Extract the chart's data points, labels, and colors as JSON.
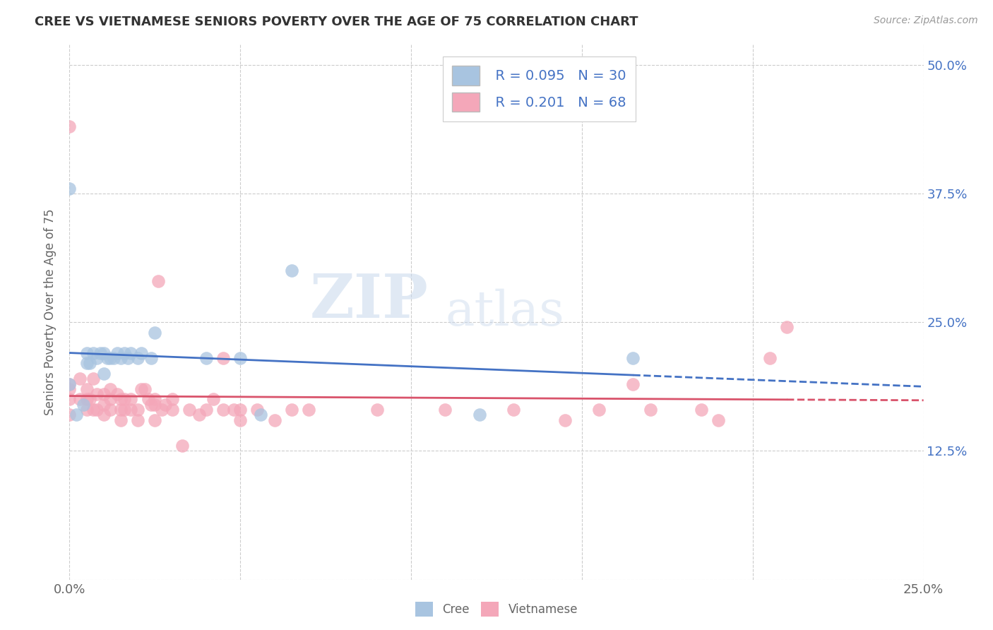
{
  "title": "CREE VS VIETNAMESE SENIORS POVERTY OVER THE AGE OF 75 CORRELATION CHART",
  "source": "Source: ZipAtlas.com",
  "ylabel": "Seniors Poverty Over the Age of 75",
  "xlim": [
    0.0,
    0.25
  ],
  "ylim": [
    0.0,
    0.52
  ],
  "xticks": [
    0.0,
    0.05,
    0.1,
    0.15,
    0.2,
    0.25
  ],
  "xticklabels": [
    "0.0%",
    "",
    "",
    "",
    "",
    "25.0%"
  ],
  "yticks": [
    0.0,
    0.125,
    0.25,
    0.375,
    0.5
  ],
  "yticklabels": [
    "",
    "12.5%",
    "25.0%",
    "37.5%",
    "50.0%"
  ],
  "legend_r1": "R = 0.095",
  "legend_n1": "N = 30",
  "legend_r2": "R = 0.201",
  "legend_n2": "N = 68",
  "cree_color": "#a8c4e0",
  "vietnamese_color": "#f4a7b9",
  "trend_cree_color": "#4472c4",
  "trend_vietnamese_color": "#d9536b",
  "background_color": "#ffffff",
  "grid_color": "#cccccc",
  "title_color": "#333333",
  "label_color": "#666666",
  "tick_color": "#4472c4",
  "cree_x": [
    0.0,
    0.0,
    0.002,
    0.004,
    0.005,
    0.005,
    0.006,
    0.007,
    0.008,
    0.009,
    0.01,
    0.01,
    0.011,
    0.012,
    0.013,
    0.014,
    0.015,
    0.016,
    0.017,
    0.018,
    0.02,
    0.021,
    0.024,
    0.025,
    0.04,
    0.05,
    0.056,
    0.065,
    0.12,
    0.165
  ],
  "cree_y": [
    0.19,
    0.38,
    0.16,
    0.17,
    0.21,
    0.22,
    0.21,
    0.22,
    0.215,
    0.22,
    0.2,
    0.22,
    0.215,
    0.215,
    0.215,
    0.22,
    0.215,
    0.22,
    0.215,
    0.22,
    0.215,
    0.22,
    0.215,
    0.24,
    0.215,
    0.215,
    0.16,
    0.3,
    0.16,
    0.215
  ],
  "vietnamese_x": [
    0.0,
    0.0,
    0.0,
    0.0,
    0.0,
    0.003,
    0.003,
    0.005,
    0.005,
    0.005,
    0.006,
    0.007,
    0.007,
    0.008,
    0.008,
    0.01,
    0.01,
    0.01,
    0.012,
    0.012,
    0.012,
    0.014,
    0.015,
    0.015,
    0.015,
    0.016,
    0.016,
    0.018,
    0.018,
    0.02,
    0.02,
    0.021,
    0.022,
    0.023,
    0.024,
    0.025,
    0.025,
    0.025,
    0.026,
    0.027,
    0.028,
    0.03,
    0.03,
    0.033,
    0.035,
    0.038,
    0.04,
    0.042,
    0.045,
    0.045,
    0.048,
    0.05,
    0.05,
    0.055,
    0.06,
    0.065,
    0.07,
    0.09,
    0.11,
    0.13,
    0.145,
    0.155,
    0.165,
    0.17,
    0.185,
    0.19,
    0.205,
    0.21
  ],
  "vietnamese_y": [
    0.16,
    0.175,
    0.185,
    0.19,
    0.44,
    0.175,
    0.195,
    0.165,
    0.175,
    0.185,
    0.175,
    0.165,
    0.195,
    0.165,
    0.18,
    0.16,
    0.17,
    0.18,
    0.165,
    0.175,
    0.185,
    0.18,
    0.155,
    0.165,
    0.175,
    0.165,
    0.175,
    0.165,
    0.175,
    0.155,
    0.165,
    0.185,
    0.185,
    0.175,
    0.17,
    0.155,
    0.17,
    0.175,
    0.29,
    0.165,
    0.17,
    0.165,
    0.175,
    0.13,
    0.165,
    0.16,
    0.165,
    0.175,
    0.165,
    0.215,
    0.165,
    0.155,
    0.165,
    0.165,
    0.155,
    0.165,
    0.165,
    0.165,
    0.165,
    0.165,
    0.155,
    0.165,
    0.19,
    0.165,
    0.165,
    0.155,
    0.215,
    0.245
  ],
  "watermark_zip": "ZIP",
  "watermark_atlas": "atlas",
  "legend_box_color1": "#a8c4e0",
  "legend_box_color2": "#f4a7b9"
}
